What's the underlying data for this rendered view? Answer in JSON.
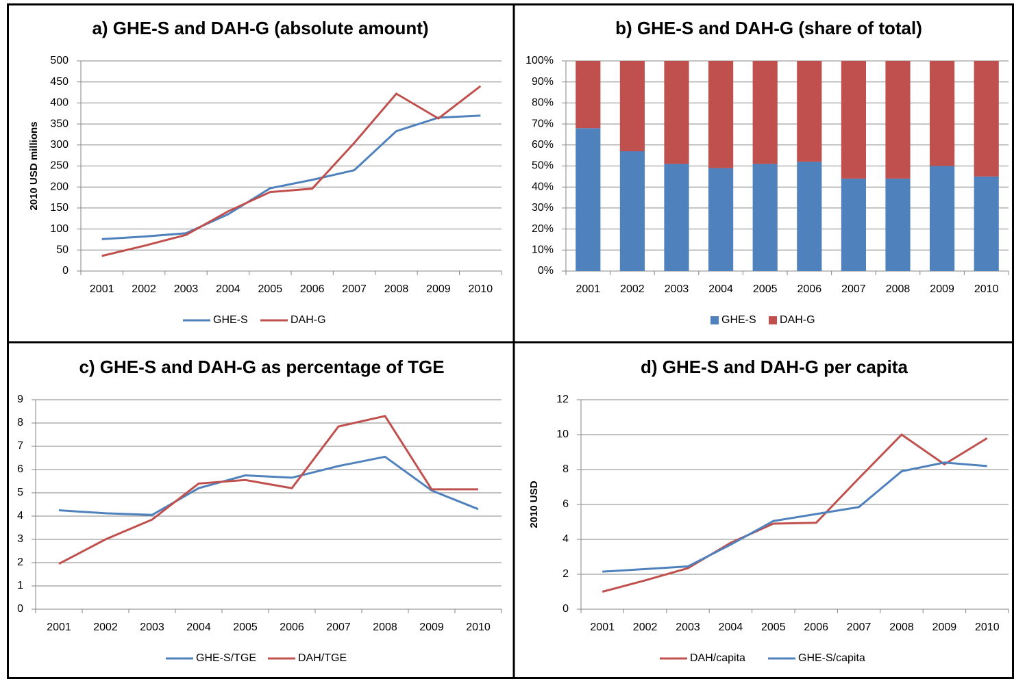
{
  "chart_data": [
    {
      "type": "line",
      "title": "a) GHE-S and DAH-G (absolute amount)",
      "y_label": "2010 USD millions",
      "categories": [
        "2001",
        "2002",
        "2003",
        "2004",
        "2005",
        "2006",
        "2007",
        "2008",
        "2009",
        "2010"
      ],
      "series": [
        {
          "name": "GHE-S",
          "color": "#4f81bd",
          "values": [
            76,
            82,
            90,
            135,
            197,
            217,
            240,
            333,
            365,
            370
          ]
        },
        {
          "name": "DAH-G",
          "color": "#c0504d",
          "values": [
            36,
            60,
            86,
            142,
            188,
            196,
            305,
            422,
            363,
            440
          ]
        }
      ],
      "ylim": [
        0,
        500
      ],
      "yticks": [
        0,
        50,
        100,
        150,
        200,
        250,
        300,
        350,
        400,
        450,
        500
      ],
      "grid": true,
      "legend": "bottom"
    },
    {
      "type": "bar",
      "stacked": true,
      "title": "b) GHE-S and DAH-G (share of total)",
      "categories": [
        "2001",
        "2002",
        "2003",
        "2004",
        "2005",
        "2006",
        "2007",
        "2008",
        "2009",
        "2010"
      ],
      "series": [
        {
          "name": "GHE-S",
          "color": "#4f81bd",
          "values": [
            68,
            57,
            51,
            49,
            51,
            52,
            44,
            44,
            50,
            45
          ]
        },
        {
          "name": "DAH-G",
          "color": "#c0504d",
          "values": [
            32,
            43,
            49,
            51,
            49,
            48,
            56,
            56,
            50,
            55
          ]
        }
      ],
      "ylim": [
        0,
        100
      ],
      "yticks": [
        {
          "value": 0,
          "label": "0%"
        },
        {
          "value": 10,
          "label": "10%"
        },
        {
          "value": 20,
          "label": "20%"
        },
        {
          "value": 30,
          "label": "30%"
        },
        {
          "value": 40,
          "label": "40%"
        },
        {
          "value": 50,
          "label": "50%"
        },
        {
          "value": 60,
          "label": "60%"
        },
        {
          "value": 70,
          "label": "70%"
        },
        {
          "value": 80,
          "label": "80%"
        },
        {
          "value": 90,
          "label": "90%"
        },
        {
          "value": 100,
          "label": "100%"
        }
      ],
      "grid": true,
      "legend": "bottom"
    },
    {
      "type": "line",
      "title": "c) GHE-S and DAH-G as percentage of TGE",
      "categories": [
        "2001",
        "2002",
        "2003",
        "2004",
        "2005",
        "2006",
        "2007",
        "2008",
        "2009",
        "2010"
      ],
      "series": [
        {
          "name": "GHE-S/TGE",
          "color": "#4f81bd",
          "values": [
            4.25,
            4.12,
            4.05,
            5.2,
            5.75,
            5.65,
            6.15,
            6.55,
            5.1,
            4.3
          ]
        },
        {
          "name": "DAH/TGE",
          "color": "#c0504d",
          "values": [
            1.95,
            3.0,
            3.85,
            5.4,
            5.55,
            5.2,
            7.85,
            8.3,
            5.15,
            5.15
          ]
        }
      ],
      "ylim": [
        0,
        9
      ],
      "yticks": [
        0,
        1,
        2,
        3,
        4,
        5,
        6,
        7,
        8,
        9
      ],
      "grid": true,
      "legend": "bottom"
    },
    {
      "type": "line",
      "title": "d) GHE-S and DAH-G per capita",
      "y_label": "2010 USD",
      "categories": [
        "2001",
        "2002",
        "2003",
        "2004",
        "2005",
        "2006",
        "2007",
        "2008",
        "2009",
        "2010"
      ],
      "series": [
        {
          "name": "DAH/capita",
          "color": "#c0504d",
          "values": [
            1.0,
            1.65,
            2.35,
            3.8,
            4.9,
            4.95,
            7.5,
            10.0,
            8.3,
            9.8
          ]
        },
        {
          "name": "GHE-S/capita",
          "color": "#4f81bd",
          "values": [
            2.15,
            2.3,
            2.45,
            3.7,
            5.05,
            5.45,
            5.85,
            7.9,
            8.4,
            8.2
          ]
        }
      ],
      "ylim": [
        0,
        12
      ],
      "yticks": [
        0,
        2,
        4,
        6,
        8,
        10,
        12
      ],
      "grid": true,
      "legend": "bottom"
    }
  ]
}
